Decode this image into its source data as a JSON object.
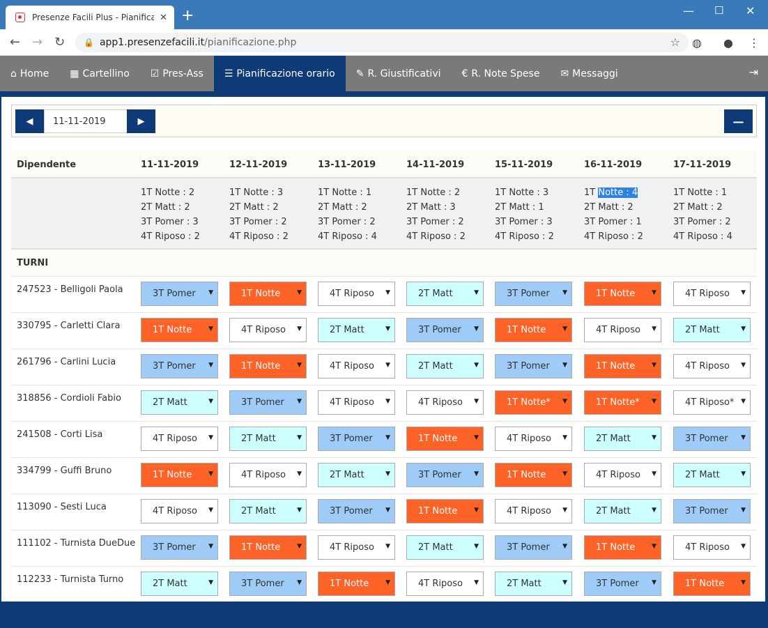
{
  "browser": {
    "tab_title": "Presenze Facili Plus - Pianificazione",
    "url_host": "app1.presenzefacili.it",
    "url_path": "/pianificazione.php"
  },
  "nav": {
    "items": [
      {
        "label": "Home",
        "icon": "home-icon"
      },
      {
        "label": "Cartellino",
        "icon": "calendar-icon"
      },
      {
        "label": "Pres-Ass",
        "icon": "check-square-icon"
      },
      {
        "label": "Pianificazione orario",
        "icon": "list-icon",
        "active": true
      },
      {
        "label": "R. Giustificativi",
        "icon": "paperclip-icon"
      },
      {
        "label": "R. Note Spese",
        "icon": "euro-icon"
      },
      {
        "label": "Messaggi",
        "icon": "envelope-icon"
      }
    ]
  },
  "date_picker": {
    "value": "11-11-2019"
  },
  "table": {
    "dipendente_label": "Dipendente",
    "dates": [
      "11-11-2019",
      "12-11-2019",
      "13-11-2019",
      "14-11-2019",
      "15-11-2019",
      "16-11-2019",
      "17-11-2019"
    ],
    "summary": [
      [
        "1T Notte : 2",
        "2T Matt : 2",
        "3T Pomer : 3",
        "4T Riposo : 2"
      ],
      [
        "1T Notte : 3",
        "2T Matt : 2",
        "3T Pomer : 2",
        "4T Riposo : 2"
      ],
      [
        "1T Notte : 1",
        "2T Matt : 2",
        "3T Pomer : 2",
        "4T Riposo : 4"
      ],
      [
        "1T Notte : 2",
        "2T Matt : 3",
        "3T Pomer : 2",
        "4T Riposo : 2"
      ],
      [
        "1T Notte : 3",
        "2T Matt : 1",
        "3T Pomer : 3",
        "4T Riposo : 2"
      ],
      [
        "1T Notte : 4",
        "2T Matt : 2",
        "3T Pomer : 1",
        "4T Riposo : 2"
      ],
      [
        "1T Notte : 1",
        "2T Matt : 2",
        "3T Pomer : 2",
        "4T Riposo : 4"
      ]
    ],
    "turni_label": "TURNI",
    "employees": [
      {
        "name": "247523 - Belligoli Paola",
        "shifts": [
          "3T Pomer",
          "1T Notte",
          "4T Riposo",
          "2T Matt",
          "3T Pomer",
          "1T Notte",
          "4T Riposo"
        ]
      },
      {
        "name": "330795 - Carletti Clara",
        "shifts": [
          "1T Notte",
          "4T Riposo",
          "2T Matt",
          "3T Pomer",
          "1T Notte",
          "4T Riposo",
          "2T Matt"
        ]
      },
      {
        "name": "261796 - Carlini Lucia",
        "shifts": [
          "3T Pomer",
          "1T Notte",
          "4T Riposo",
          "2T Matt",
          "3T Pomer",
          "1T Notte",
          "4T Riposo"
        ]
      },
      {
        "name": "318856 - Cordioli Fabio",
        "shifts": [
          "2T Matt",
          "3T Pomer",
          "4T Riposo",
          "4T Riposo",
          "1T Notte*",
          "1T Notte*",
          "4T Riposo*"
        ]
      },
      {
        "name": "241508 - Corti Lisa",
        "shifts": [
          "4T Riposo",
          "2T Matt",
          "3T Pomer",
          "1T Notte",
          "4T Riposo",
          "2T Matt",
          "3T Pomer"
        ]
      },
      {
        "name": "334799 - Guffi Bruno",
        "shifts": [
          "1T Notte",
          "4T Riposo",
          "2T Matt",
          "3T Pomer",
          "1T Notte",
          "4T Riposo",
          "2T Matt"
        ]
      },
      {
        "name": "113090 - Sesti Luca",
        "shifts": [
          "4T Riposo",
          "2T Matt",
          "3T Pomer",
          "1T Notte",
          "4T Riposo",
          "2T Matt",
          "3T Pomer"
        ]
      },
      {
        "name": "111102 - Turnista DueDue",
        "shifts": [
          "3T Pomer",
          "1T Notte",
          "4T Riposo",
          "2T Matt",
          "3T Pomer",
          "1T Notte",
          "4T Riposo"
        ]
      },
      {
        "name": "112233 - Turnista Turno",
        "shifts": [
          "2T Matt",
          "3T Pomer",
          "1T Notte",
          "4T Riposo",
          "2T Matt",
          "3T Pomer",
          "1T Notte"
        ]
      }
    ]
  },
  "shift_colors": {
    "1T": "#fe6227",
    "2T": "#ccfffe",
    "3T": "#9fcbf7",
    "4T": "#ffffff"
  }
}
